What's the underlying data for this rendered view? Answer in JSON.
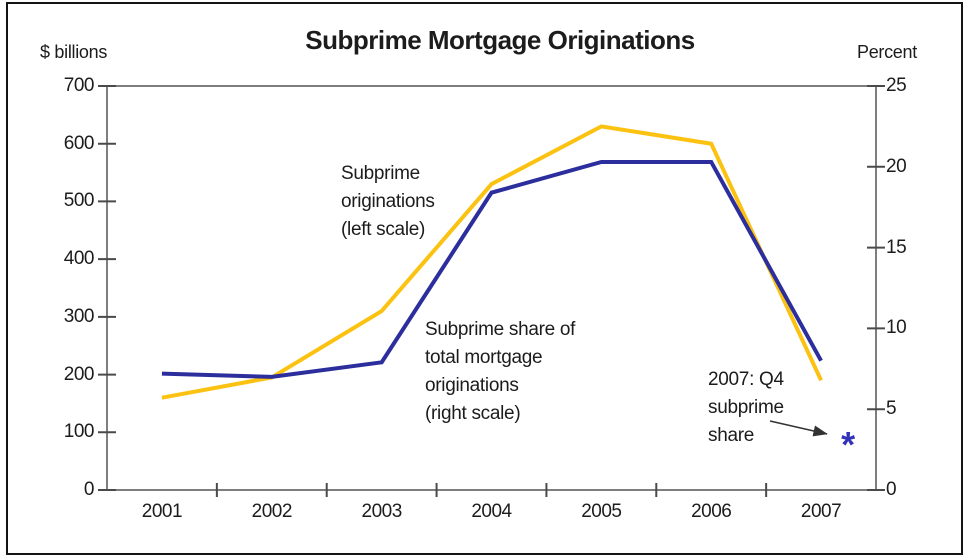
{
  "chart_data": {
    "type": "line",
    "title": "Subprime Mortgage Originations",
    "categories": [
      "2001",
      "2002",
      "2003",
      "2004",
      "2005",
      "2006",
      "2007"
    ],
    "left_axis": {
      "label": "$ billions",
      "min": 0,
      "max": 700,
      "ticks": [
        0,
        100,
        200,
        300,
        400,
        500,
        600,
        700
      ]
    },
    "right_axis": {
      "label": "Percent",
      "min": 0,
      "max": 25,
      "ticks": [
        0,
        5,
        10,
        15,
        20,
        25
      ]
    },
    "grid": "off",
    "legend": "inline-annotations",
    "series": [
      {
        "id": "subprime-originations",
        "name": "Subprime originations (left scale)",
        "scale": "left",
        "color": "#FCC211",
        "values": [
          160,
          195,
          310,
          530,
          630,
          600,
          190
        ]
      },
      {
        "id": "subprime-share",
        "name": "Subprime share of total mortgage originations (right scale)",
        "scale": "right",
        "color": "#2B2E9C",
        "values": [
          7.2,
          7.0,
          7.9,
          18.4,
          20.3,
          20.3,
          8.0
        ]
      }
    ],
    "point_marker": {
      "id": "q4-share-point",
      "glyph": "*",
      "scale": "right",
      "value": 3.1,
      "color": "#3234B8"
    },
    "annotations": [
      {
        "id": "originations-label",
        "lines": [
          "Subprime",
          "originations",
          "(left scale)"
        ]
      },
      {
        "id": "share-label",
        "lines": [
          "Subprime share of",
          "total mortgage",
          "originations",
          "(right scale)"
        ]
      },
      {
        "id": "q4-note",
        "lines": [
          "2007: Q4",
          "subprime",
          "share"
        ]
      }
    ],
    "style": {
      "axis_color": "#7E7E7E",
      "tick_color": "#4A4A4A",
      "text_color": "#1C1C1C"
    }
  }
}
